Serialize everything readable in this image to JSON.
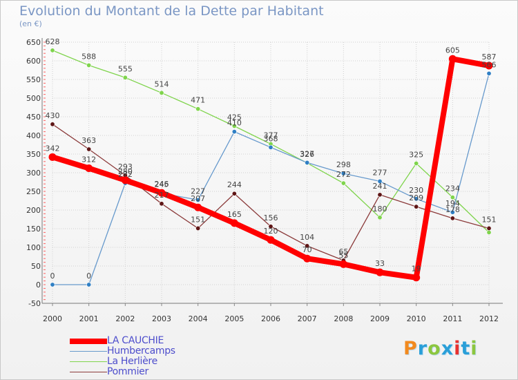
{
  "chart_data": {
    "type": "line",
    "title": "Evolution du Montant de la Dette par Habitant",
    "subtitle": "(en €)",
    "ylim": [
      -50,
      650
    ],
    "yticks": [
      -50,
      0,
      50,
      100,
      150,
      200,
      250,
      300,
      350,
      400,
      450,
      500,
      550,
      600,
      650
    ],
    "ytick_labels": [
      "-50",
      "0",
      "50",
      "100",
      "150",
      "200",
      "250",
      "300",
      "350",
      "400",
      "450",
      "500",
      "550",
      "600",
      "650"
    ],
    "categories": [
      "2000",
      "2001",
      "2002",
      "2003",
      "2004",
      "2005",
      "2006",
      "2007",
      "2008",
      "2009",
      "2010",
      "2011",
      "2012"
    ],
    "grid": true,
    "legend_position": "bottom-left",
    "series": [
      {
        "name": "La Herlière",
        "color": "#7fd44c",
        "marker_color": "#7fd44c",
        "values": [
          628,
          588,
          555,
          514,
          471,
          425,
          377,
          326,
          272,
          180,
          325,
          234,
          140
        ],
        "labels": [
          "628",
          "588",
          "555",
          "514",
          "471",
          "425",
          "377",
          "326",
          "272",
          "180",
          "325",
          "234",
          ""
        ]
      },
      {
        "name": "Humbercamps",
        "color": "#6699cc",
        "marker_color": "#2f7fc4",
        "values": [
          0,
          0,
          272,
          245,
          227,
          410,
          368,
          327,
          298,
          277,
          230,
          194,
          566
        ],
        "labels": [
          "0",
          "0",
          "272",
          "245",
          "227",
          "410",
          "368",
          "327",
          "298",
          "277",
          "230",
          "194",
          "566"
        ]
      },
      {
        "name": "Pommier",
        "color": "#8b3a3a",
        "marker_color": "#5e1515",
        "values": [
          430,
          363,
          293,
          217,
          151,
          244,
          156,
          104,
          65,
          241,
          209,
          178,
          151
        ],
        "labels": [
          "430",
          "363",
          "293",
          "217",
          "151",
          "244",
          "156",
          "104",
          "65",
          "241",
          "209",
          "178",
          "151"
        ]
      },
      {
        "name": "LA CAUCHIE",
        "color": "#ff0000",
        "marker_color": "#ff0000",
        "values": [
          342,
          312,
          280,
          246,
          207,
          165,
          120,
          70,
          55,
          33,
          19,
          605,
          587
        ],
        "labels": [
          "342",
          "312",
          "280",
          "246",
          "207",
          "165",
          "120",
          "70",
          "55",
          "33",
          "19",
          "605",
          "587"
        ]
      }
    ],
    "legend_order": [
      "LA CAUCHIE",
      "Humbercamps",
      "La Herlière",
      "Pommier"
    ]
  },
  "brand": {
    "text": "Proxiti",
    "colors": [
      "#f28a1f",
      "#2a9fd8",
      "#8cc63f",
      "#2a9fd8",
      "#e8312f",
      "#2a9fd8",
      "#8cc63f"
    ]
  }
}
